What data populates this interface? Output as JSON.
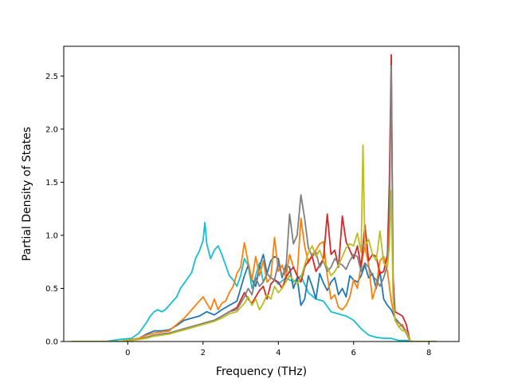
{
  "chart_data": {
    "type": "line",
    "title": "",
    "xlabel": "Frequency (THz)",
    "ylabel": "Partial Density of States",
    "xlim": [
      -1.7,
      8.8
    ],
    "ylim": [
      0,
      2.78
    ],
    "xticks": [
      0,
      2,
      4,
      6,
      8
    ],
    "xtick_labels": [
      "0",
      "2",
      "4",
      "6",
      "8"
    ],
    "yticks": [
      0,
      0.5,
      1.0,
      1.5,
      2.0,
      2.5
    ],
    "ytick_labels": [
      "0.0",
      "0.5",
      "1.0",
      "1.5",
      "2.0",
      "2.5"
    ],
    "grid": false,
    "legend": "none",
    "series": [
      {
        "color": "#17becf",
        "x": [
          -1.5,
          -0.6,
          -0.2,
          0.1,
          0.3,
          0.5,
          0.6,
          0.7,
          0.8,
          0.9,
          1.0,
          1.1,
          1.2,
          1.3,
          1.4,
          1.5,
          1.6,
          1.7,
          1.8,
          1.9,
          2.0,
          2.05,
          2.1,
          2.2,
          2.3,
          2.4,
          2.5,
          2.6,
          2.7,
          2.8,
          2.9,
          3.0,
          3.1,
          3.2,
          3.3,
          3.4,
          3.5,
          3.6,
          3.7,
          3.8,
          3.9,
          4.0,
          4.2,
          4.4,
          4.6,
          4.8,
          5.0,
          5.2,
          5.4,
          5.6,
          5.8,
          6.0,
          6.2,
          6.4,
          6.6,
          6.8,
          7.0,
          7.2,
          7.4,
          7.6,
          8.2
        ],
        "values": [
          0,
          0,
          0.02,
          0.03,
          0.08,
          0.18,
          0.24,
          0.28,
          0.3,
          0.28,
          0.3,
          0.34,
          0.38,
          0.42,
          0.5,
          0.55,
          0.6,
          0.65,
          0.78,
          0.85,
          0.95,
          1.12,
          0.92,
          0.78,
          0.86,
          0.9,
          0.82,
          0.72,
          0.62,
          0.58,
          0.52,
          0.62,
          0.78,
          0.72,
          0.5,
          0.62,
          0.74,
          0.56,
          0.64,
          0.6,
          0.58,
          0.54,
          0.6,
          0.56,
          0.62,
          0.46,
          0.4,
          0.38,
          0.28,
          0.26,
          0.24,
          0.2,
          0.12,
          0.06,
          0.04,
          0.03,
          0.03,
          0.01,
          0.01,
          0,
          0
        ]
      },
      {
        "color": "#1f77b4",
        "x": [
          -1.5,
          -0.2,
          0.3,
          0.5,
          0.7,
          0.9,
          1.1,
          1.3,
          1.5,
          1.7,
          1.9,
          2.1,
          2.3,
          2.5,
          2.7,
          2.9,
          3.1,
          3.2,
          3.3,
          3.4,
          3.5,
          3.6,
          3.7,
          3.8,
          3.9,
          4.0,
          4.1,
          4.2,
          4.3,
          4.4,
          4.5,
          4.6,
          4.7,
          4.8,
          4.9,
          5.0,
          5.1,
          5.2,
          5.3,
          5.4,
          5.5,
          5.6,
          5.7,
          5.8,
          5.9,
          6.0,
          6.1,
          6.2,
          6.3,
          6.4,
          6.5,
          6.6,
          6.7,
          6.8,
          6.9,
          7.0,
          7.1,
          7.2,
          7.3,
          7.4,
          7.5,
          8.2
        ],
        "values": [
          0,
          0,
          0.03,
          0.07,
          0.1,
          0.1,
          0.11,
          0.15,
          0.2,
          0.22,
          0.24,
          0.28,
          0.25,
          0.3,
          0.34,
          0.38,
          0.62,
          0.72,
          0.58,
          0.52,
          0.7,
          0.82,
          0.64,
          0.76,
          0.8,
          0.78,
          0.6,
          0.72,
          0.7,
          0.5,
          0.6,
          0.34,
          0.4,
          0.62,
          0.52,
          0.4,
          0.64,
          0.55,
          0.48,
          0.56,
          0.6,
          0.44,
          0.5,
          0.42,
          0.62,
          0.58,
          0.56,
          0.62,
          0.72,
          0.6,
          0.64,
          0.5,
          0.66,
          0.4,
          0.34,
          0.3,
          0.22,
          0.18,
          0.14,
          0.1,
          0,
          0
        ]
      },
      {
        "color": "#ff7f0e",
        "x": [
          -1.5,
          -0.2,
          0.3,
          0.5,
          0.7,
          0.9,
          1.1,
          1.3,
          1.5,
          1.7,
          1.9,
          2.0,
          2.1,
          2.2,
          2.3,
          2.4,
          2.5,
          2.6,
          2.7,
          2.8,
          2.9,
          3.0,
          3.1,
          3.2,
          3.3,
          3.4,
          3.5,
          3.6,
          3.7,
          3.8,
          3.9,
          4.0,
          4.1,
          4.2,
          4.3,
          4.4,
          4.5,
          4.6,
          4.7,
          4.8,
          4.9,
          5.0,
          5.1,
          5.2,
          5.3,
          5.4,
          5.5,
          5.6,
          5.7,
          5.8,
          5.9,
          6.0,
          6.1,
          6.2,
          6.3,
          6.4,
          6.5,
          6.6,
          6.7,
          6.8,
          6.9,
          7.0,
          7.1,
          7.2,
          7.3,
          7.4,
          7.5,
          8.2
        ],
        "values": [
          0,
          0,
          0.03,
          0.06,
          0.08,
          0.09,
          0.1,
          0.16,
          0.22,
          0.3,
          0.38,
          0.42,
          0.36,
          0.3,
          0.4,
          0.3,
          0.36,
          0.38,
          0.46,
          0.52,
          0.64,
          0.7,
          0.93,
          0.74,
          0.58,
          0.8,
          0.62,
          0.76,
          0.56,
          0.6,
          0.98,
          0.66,
          0.72,
          0.6,
          0.82,
          0.7,
          0.62,
          1.16,
          0.9,
          0.74,
          0.82,
          0.86,
          0.92,
          0.94,
          0.62,
          0.4,
          0.44,
          0.32,
          0.3,
          0.34,
          0.42,
          0.58,
          0.5,
          0.72,
          0.9,
          0.72,
          0.4,
          0.52,
          0.76,
          0.8,
          0.66,
          0.38,
          0.22,
          0.14,
          0.16,
          0.08,
          0,
          0
        ]
      },
      {
        "color": "#d62728",
        "x": [
          -1.5,
          -0.2,
          0.3,
          0.5,
          0.7,
          0.9,
          1.1,
          1.3,
          1.5,
          1.7,
          1.9,
          2.1,
          2.3,
          2.5,
          2.7,
          2.9,
          3.1,
          3.2,
          3.3,
          3.4,
          3.5,
          3.6,
          3.7,
          3.8,
          3.9,
          4.0,
          4.1,
          4.2,
          4.3,
          4.4,
          4.5,
          4.6,
          4.7,
          4.8,
          4.9,
          5.0,
          5.1,
          5.2,
          5.3,
          5.4,
          5.5,
          5.6,
          5.7,
          5.8,
          5.9,
          6.0,
          6.1,
          6.2,
          6.3,
          6.4,
          6.5,
          6.6,
          6.7,
          6.8,
          6.9,
          6.95,
          7.0,
          7.05,
          7.1,
          7.2,
          7.3,
          7.4,
          7.5,
          8.2
        ],
        "values": [
          0,
          0,
          0.02,
          0.04,
          0.06,
          0.07,
          0.08,
          0.1,
          0.12,
          0.14,
          0.16,
          0.18,
          0.2,
          0.24,
          0.28,
          0.32,
          0.46,
          0.4,
          0.36,
          0.42,
          0.48,
          0.52,
          0.4,
          0.54,
          0.58,
          0.56,
          0.5,
          0.6,
          0.66,
          0.7,
          0.62,
          0.56,
          0.7,
          0.76,
          0.8,
          0.66,
          0.72,
          0.78,
          1.2,
          0.82,
          0.86,
          0.7,
          1.18,
          0.94,
          0.86,
          0.78,
          0.9,
          0.7,
          1.1,
          0.76,
          0.82,
          0.8,
          0.64,
          0.66,
          0.82,
          1.5,
          2.7,
          0.6,
          0.28,
          0.26,
          0.24,
          0.16,
          0,
          0
        ]
      },
      {
        "color": "#7f7f7f",
        "x": [
          -1.5,
          -0.2,
          0.3,
          0.5,
          0.7,
          0.9,
          1.1,
          1.3,
          1.5,
          1.7,
          1.9,
          2.1,
          2.3,
          2.5,
          2.7,
          2.9,
          3.1,
          3.2,
          3.3,
          3.4,
          3.5,
          3.6,
          3.7,
          3.8,
          3.9,
          4.0,
          4.1,
          4.2,
          4.3,
          4.4,
          4.5,
          4.6,
          4.7,
          4.8,
          4.9,
          5.0,
          5.1,
          5.2,
          5.3,
          5.4,
          5.5,
          5.6,
          5.7,
          5.8,
          5.9,
          6.0,
          6.1,
          6.2,
          6.3,
          6.4,
          6.5,
          6.6,
          6.7,
          6.8,
          6.9,
          6.95,
          7.0,
          7.05,
          7.1,
          7.2,
          7.3,
          7.4,
          7.5,
          8.2
        ],
        "values": [
          0,
          0,
          0.02,
          0.04,
          0.06,
          0.07,
          0.08,
          0.1,
          0.12,
          0.14,
          0.16,
          0.18,
          0.2,
          0.24,
          0.28,
          0.3,
          0.42,
          0.5,
          0.44,
          0.6,
          0.52,
          0.56,
          0.64,
          0.6,
          0.58,
          0.74,
          0.62,
          0.66,
          1.2,
          0.92,
          1.0,
          1.38,
          1.16,
          0.88,
          0.8,
          0.84,
          0.7,
          0.76,
          0.66,
          0.7,
          0.78,
          0.74,
          0.72,
          0.68,
          0.76,
          0.82,
          0.8,
          0.66,
          0.74,
          0.7,
          0.62,
          0.58,
          0.52,
          0.6,
          0.72,
          1.1,
          2.6,
          0.5,
          0.2,
          0.18,
          0.14,
          0.08,
          0,
          0
        ]
      },
      {
        "color": "#bcbd22",
        "x": [
          -1.5,
          -0.2,
          0.3,
          0.5,
          0.7,
          0.9,
          1.1,
          1.3,
          1.5,
          1.7,
          1.9,
          2.1,
          2.3,
          2.5,
          2.7,
          2.9,
          3.1,
          3.2,
          3.3,
          3.4,
          3.5,
          3.6,
          3.7,
          3.8,
          3.9,
          4.0,
          4.1,
          4.2,
          4.3,
          4.4,
          4.5,
          4.6,
          4.7,
          4.8,
          4.9,
          5.0,
          5.1,
          5.2,
          5.3,
          5.4,
          5.5,
          5.6,
          5.7,
          5.8,
          5.9,
          6.0,
          6.1,
          6.2,
          6.25,
          6.3,
          6.4,
          6.5,
          6.6,
          6.7,
          6.8,
          6.9,
          6.95,
          7.0,
          7.05,
          7.1,
          7.2,
          7.3,
          7.4,
          7.5,
          8.2
        ],
        "values": [
          0,
          0,
          0.02,
          0.03,
          0.05,
          0.06,
          0.07,
          0.09,
          0.11,
          0.13,
          0.15,
          0.17,
          0.19,
          0.22,
          0.26,
          0.28,
          0.36,
          0.42,
          0.34,
          0.4,
          0.3,
          0.36,
          0.44,
          0.4,
          0.52,
          0.46,
          0.5,
          0.56,
          0.62,
          0.58,
          0.54,
          0.6,
          0.72,
          0.84,
          0.9,
          0.8,
          0.86,
          0.76,
          0.7,
          0.62,
          0.66,
          0.72,
          0.8,
          0.88,
          0.92,
          0.9,
          1.02,
          0.84,
          1.85,
          0.9,
          0.96,
          0.82,
          0.76,
          1.04,
          0.74,
          0.7,
          0.9,
          1.42,
          0.4,
          0.2,
          0.14,
          0.1,
          0.1,
          0,
          0
        ]
      }
    ]
  }
}
